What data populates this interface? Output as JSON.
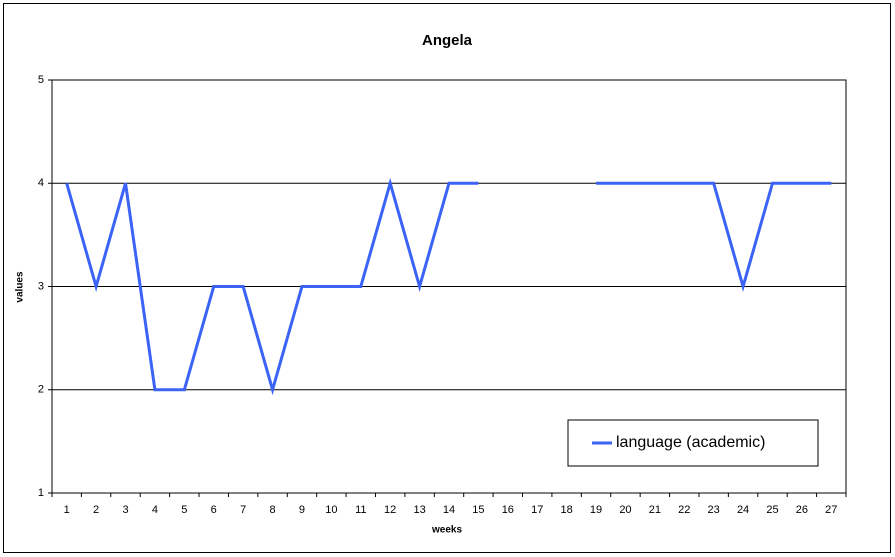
{
  "chart_data": {
    "type": "line",
    "title": "Angela",
    "x_label": "weeks",
    "y_label": "values",
    "categories": [
      1,
      2,
      3,
      4,
      5,
      6,
      7,
      8,
      9,
      10,
      11,
      12,
      13,
      14,
      15,
      16,
      17,
      18,
      19,
      20,
      21,
      22,
      23,
      24,
      25,
      26,
      27
    ],
    "series": [
      {
        "name": "language (academic)",
        "color": "#3b63f5",
        "values": [
          4,
          3,
          4,
          2,
          2,
          3,
          3,
          2,
          3,
          3,
          3,
          4,
          3,
          4,
          4,
          null,
          null,
          null,
          4,
          4,
          4,
          4,
          4,
          3,
          4,
          4,
          4
        ]
      }
    ],
    "ylim": [
      1,
      5
    ],
    "yticks": [
      1,
      2,
      3,
      4,
      5
    ],
    "grid": true,
    "legend": "lower right"
  }
}
